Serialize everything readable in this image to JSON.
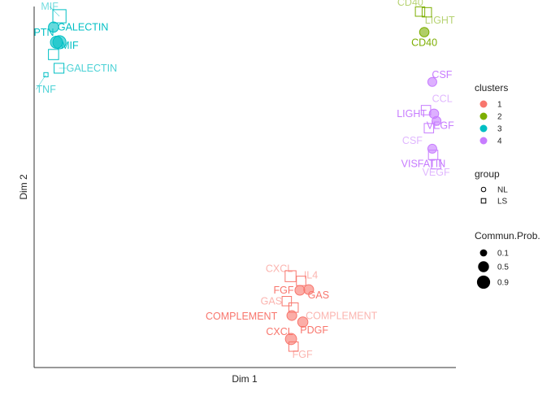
{
  "chart_data": {
    "type": "scatter",
    "title": "",
    "xlabel": "Dim 1",
    "ylabel": "Dim 2",
    "xlim": [
      0,
      100
    ],
    "ylim": [
      0,
      100
    ],
    "grid": false,
    "legend_position": "right",
    "clusters": {
      "title": "clusters",
      "items": [
        {
          "label": "1",
          "color": "#F8766D"
        },
        {
          "label": "2",
          "color": "#7CAE00"
        },
        {
          "label": "3",
          "color": "#00BFC4"
        },
        {
          "label": "4",
          "color": "#C77CFF"
        }
      ]
    },
    "group": {
      "title": "group",
      "items": [
        {
          "label": "NL",
          "shape": "circle"
        },
        {
          "label": "LS",
          "shape": "square"
        }
      ]
    },
    "size_legend": {
      "title": "Commun.Prob.",
      "items": [
        {
          "label": "0.1",
          "value": 0.1
        },
        {
          "label": "0.5",
          "value": 0.5
        },
        {
          "label": "0.9",
          "value": 0.9
        }
      ]
    },
    "points": [
      {
        "label": "MIF",
        "x": 6.0,
        "y": 97.3,
        "cluster": "3",
        "group": "LS",
        "prob": 0.9
      },
      {
        "label": "GALECTIN",
        "x": 4.6,
        "y": 94.3,
        "cluster": "3",
        "group": "NL",
        "prob": 0.4
      },
      {
        "label": "PTN",
        "x": 5.3,
        "y": 90.1,
        "cluster": "3",
        "group": "NL",
        "prob": 0.7
      },
      {
        "label": "MIF",
        "x": 6.0,
        "y": 90.1,
        "cluster": "3",
        "group": "NL",
        "prob": 0.9
      },
      {
        "label": "",
        "x": 4.6,
        "y": 86.7,
        "cluster": "3",
        "group": "LS",
        "prob": 0.4
      },
      {
        "label": "GALECTIN",
        "x": 5.9,
        "y": 82.9,
        "cluster": "3",
        "group": "LS",
        "prob": 0.35
      },
      {
        "label": "TNF",
        "x": 2.8,
        "y": 81.1,
        "cluster": "3",
        "group": "LS",
        "prob": 0.0
      },
      {
        "label": "CD40",
        "x": 91.5,
        "y": 98.6,
        "cluster": "2",
        "group": "LS",
        "prob": 0.3
      },
      {
        "label": "LIGHT",
        "x": 93.1,
        "y": 98.4,
        "cluster": "2",
        "group": "LS",
        "prob": 0.3
      },
      {
        "label": "CD40",
        "x": 92.5,
        "y": 92.9,
        "cluster": "2",
        "group": "NL",
        "prob": 0.3
      },
      {
        "label": "CSF",
        "x": 94.4,
        "y": 79.1,
        "cluster": "4",
        "group": "NL",
        "prob": 0.25
      },
      {
        "label": "CCL",
        "x": 92.9,
        "y": 71.3,
        "cluster": "4",
        "group": "LS",
        "prob": 0.3
      },
      {
        "label": "LIGHT",
        "x": 94.8,
        "y": 70.3,
        "cluster": "4",
        "group": "NL",
        "prob": 0.3
      },
      {
        "label": "",
        "x": 95.4,
        "y": 68.3,
        "cluster": "4",
        "group": "NL",
        "prob": 0.25
      },
      {
        "label": "VEGF",
        "x": 93.6,
        "y": 66.3,
        "cluster": "4",
        "group": "LS",
        "prob": 0.3
      },
      {
        "label": "CSF",
        "x": 94.4,
        "y": 60.6,
        "cluster": "4",
        "group": "NL",
        "prob": 0.25
      },
      {
        "label": "VISFATIN",
        "x": 94.6,
        "y": 58.9,
        "cluster": "4",
        "group": "LS",
        "prob": 0.3
      },
      {
        "label": "VEGF",
        "x": 95.3,
        "y": 56.3,
        "cluster": "4",
        "group": "LS",
        "prob": 0.3
      },
      {
        "label": "CXCL",
        "x": 60.8,
        "y": 25.3,
        "cluster": "1",
        "group": "LS",
        "prob": 0.5
      },
      {
        "label": "IL4",
        "x": 63.3,
        "y": 24.0,
        "cluster": "1",
        "group": "LS",
        "prob": 0.3
      },
      {
        "label": "FGF",
        "x": 63.0,
        "y": 21.4,
        "cluster": "1",
        "group": "NL",
        "prob": 0.35
      },
      {
        "label": "GAS",
        "x": 65.1,
        "y": 21.6,
        "cluster": "1",
        "group": "NL",
        "prob": 0.35
      },
      {
        "label": "GAS",
        "x": 59.9,
        "y": 18.4,
        "cluster": "1",
        "group": "LS",
        "prob": 0.3
      },
      {
        "label": "COMPLEMENT",
        "x": 61.5,
        "y": 16.6,
        "cluster": "1",
        "group": "LS",
        "prob": 0.3
      },
      {
        "label": "COMPLEMENT",
        "x": 61.1,
        "y": 14.4,
        "cluster": "1",
        "group": "NL",
        "prob": 0.35
      },
      {
        "label": "PDGF",
        "x": 63.7,
        "y": 12.6,
        "cluster": "1",
        "group": "NL",
        "prob": 0.4
      },
      {
        "label": "CXCL",
        "x": 60.9,
        "y": 7.9,
        "cluster": "1",
        "group": "NL",
        "prob": 0.55
      },
      {
        "label": "FGF",
        "x": 61.5,
        "y": 5.8,
        "cluster": "1",
        "group": "LS",
        "prob": 0.3
      }
    ]
  }
}
